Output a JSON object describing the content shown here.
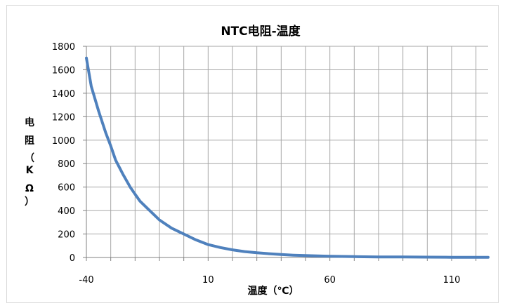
{
  "chart_data": {
    "type": "line",
    "title": "NTC电阻-温度",
    "xlabel": "温度（℃）",
    "ylabel_chars": [
      "电",
      "阻",
      "（",
      "K",
      "Ω",
      "）"
    ],
    "xlim": [
      -40,
      125
    ],
    "ylim": [
      0,
      1800
    ],
    "x_ticks": [
      -40,
      10,
      60,
      110
    ],
    "y_ticks": [
      0,
      200,
      400,
      600,
      800,
      1000,
      1200,
      1400,
      1600,
      1800
    ],
    "grid": true,
    "legend": "none",
    "series_color": "#4f81bd",
    "series": [
      {
        "x": [
          -40,
          -38,
          -35,
          -32,
          -30,
          -28,
          -25,
          -22,
          -20,
          -18,
          -15,
          -12,
          -10,
          -5,
          0,
          5,
          10,
          15,
          20,
          25,
          30,
          35,
          40,
          45,
          50,
          55,
          60,
          70,
          80,
          90,
          100,
          110,
          120,
          125
        ],
        "y": [
          1700,
          1460,
          1250,
          1060,
          950,
          830,
          710,
          600,
          540,
          480,
          420,
          360,
          320,
          250,
          200,
          150,
          110,
          85,
          65,
          50,
          40,
          32,
          25,
          20,
          16,
          13,
          10,
          7,
          5,
          4,
          3,
          2,
          1.5,
          1
        ]
      }
    ]
  }
}
